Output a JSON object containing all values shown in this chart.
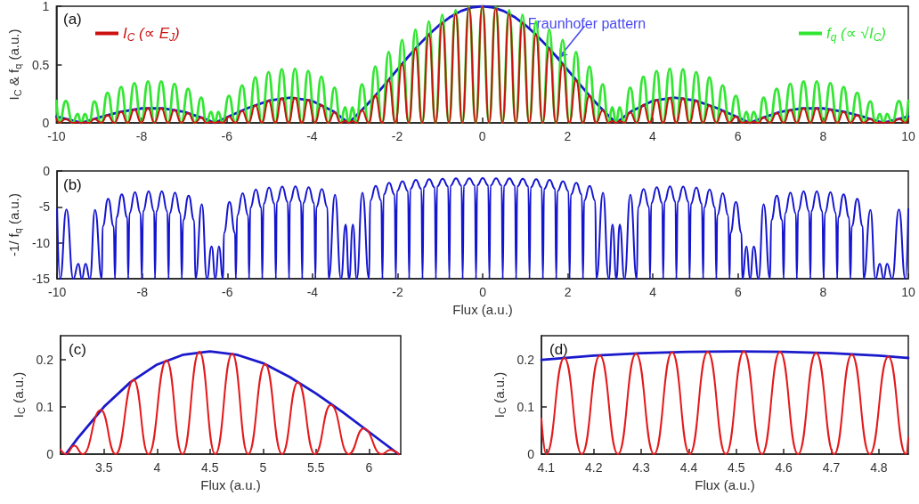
{
  "chart_data": [
    {
      "type": "line",
      "title": "(a)",
      "ylabel": "I$_{C}$ & f$_{q}$ (a.u.)",
      "xlim": [
        -10,
        10
      ],
      "xticks": [
        -10,
        -8,
        -6,
        -4,
        -2,
        0,
        2,
        4,
        6,
        8,
        10
      ],
      "ylim": [
        0,
        1
      ],
      "yticks": [
        0,
        0.5,
        1
      ],
      "legend": "top",
      "marker": "none",
      "x": [
        -10,
        -9.93,
        -9.78,
        -9.62,
        -9.5,
        -9.42,
        -9.33,
        -9.23,
        -9.11,
        -8.95,
        -8.8,
        -8.64,
        -8.48,
        -8.33,
        -8.17,
        -8.01,
        -7.85,
        -7.7,
        -7.54,
        -7.38,
        -7.23,
        -7.07,
        -6.91,
        -6.75,
        -6.6,
        -6.48,
        -6.37,
        -6.28,
        -6.2,
        -6.1,
        -5.95,
        -5.8,
        -5.64,
        -5.49,
        -5.33,
        -5.18,
        -5.02,
        -4.86,
        -4.71,
        -4.55,
        -4.4,
        -4.24,
        -4.09,
        -3.93,
        -3.78,
        -3.62,
        -3.47,
        -3.33,
        -3.22,
        -3.14,
        -3.05,
        -2.96,
        -2.827,
        -2.67,
        -2.513,
        -2.356,
        -2.199,
        -2.042,
        -1.885,
        -1.728,
        -1.571,
        -1.414,
        -1.257,
        -1.1,
        -0.942,
        -0.785,
        -0.628,
        -0.471,
        -0.314,
        -0.157,
        0,
        0.157,
        0.314,
        0.471,
        0.628,
        0.785,
        0.942,
        1.1,
        1.257,
        1.414,
        1.571,
        1.728,
        1.885,
        2.042,
        2.199,
        2.356,
        2.513,
        2.67,
        2.827,
        2.96,
        3.05,
        3.14,
        3.22,
        3.33,
        3.47,
        3.62,
        3.78,
        3.93,
        4.09,
        4.24,
        4.4,
        4.55,
        4.71,
        4.86,
        5.02,
        5.18,
        5.33,
        5.49,
        5.64,
        5.8,
        5.95,
        6.1,
        6.2,
        6.28,
        6.37,
        6.48,
        6.6,
        6.75,
        6.91,
        7.07,
        7.23,
        7.38,
        7.54,
        7.7,
        7.85,
        8.01,
        8.17,
        8.33,
        8.48,
        8.64,
        8.8,
        8.95,
        9.11,
        9.23,
        9.33,
        9.42,
        9.5,
        9.62,
        9.78,
        9.93,
        10
      ],
      "series": [
        {
          "name": "I$_{C}$ (∝ E$_{J}$)",
          "color": "#cc1111",
          "values": [
            0.036,
            0,
            0.035,
            0,
            0.006,
            0,
            0.006,
            0,
            0.034,
            0,
            0.067,
            0,
            0.095,
            0,
            0.116,
            0,
            0.127,
            0,
            0.126,
            0,
            0.112,
            0,
            0.085,
            0,
            0.047,
            0,
            0.009,
            0,
            0.009,
            0,
            0.054,
            0,
            0.104,
            0,
            0.152,
            0,
            0.19,
            0,
            0.212,
            0,
            0.216,
            0,
            0.198,
            0,
            0.157,
            0,
            0.091,
            0,
            0.018,
            0,
            0.018,
            0,
            0.109,
            0,
            0.234,
            0,
            0.368,
            0,
            0.505,
            0,
            0.637,
            0,
            0.757,
            0,
            0.859,
            0,
            0.936,
            0,
            0.984,
            0,
            1,
            0,
            0.984,
            0,
            0.936,
            0,
            0.859,
            0,
            0.757,
            0,
            0.637,
            0,
            0.505,
            0,
            0.368,
            0,
            0.234,
            0,
            0.109,
            0,
            0.018,
            0,
            0.018,
            0,
            0.091,
            0,
            0.157,
            0,
            0.198,
            0,
            0.216,
            0,
            0.212,
            0,
            0.19,
            0,
            0.152,
            0,
            0.104,
            0,
            0.054,
            0,
            0.009,
            0,
            0.009,
            0,
            0.047,
            0,
            0.085,
            0,
            0.112,
            0,
            0.126,
            0,
            0.127,
            0,
            0.116,
            0,
            0.095,
            0,
            0.067,
            0,
            0.034,
            0,
            0.006,
            0,
            0.006,
            0,
            0.035,
            0,
            0.036
          ]
        },
        {
          "name": "f$_{q}$ (∝ √I$_{C}$)",
          "color": "#33e633",
          "values": [
            0.19,
            0,
            0.187,
            0,
            0.077,
            0,
            0.077,
            0,
            0.184,
            0,
            0.259,
            0,
            0.308,
            0,
            0.341,
            0,
            0.356,
            0,
            0.355,
            0,
            0.335,
            0,
            0.292,
            0,
            0.217,
            0,
            0.095,
            0,
            0.095,
            0,
            0.232,
            0,
            0.322,
            0,
            0.39,
            0,
            0.436,
            0,
            0.46,
            0,
            0.465,
            0,
            0.445,
            0,
            0.396,
            0,
            0.302,
            0,
            0.134,
            0,
            0.134,
            0,
            0.33,
            0,
            0.484,
            0,
            0.607,
            0,
            0.711,
            0,
            0.798,
            0,
            0.87,
            0,
            0.927,
            0,
            0.967,
            0,
            0.992,
            0,
            1,
            0,
            0.992,
            0,
            0.967,
            0,
            0.927,
            0,
            0.87,
            0,
            0.798,
            0,
            0.711,
            0,
            0.607,
            0,
            0.484,
            0,
            0.33,
            0,
            0.134,
            0,
            0.134,
            0,
            0.302,
            0,
            0.396,
            0,
            0.445,
            0,
            0.465,
            0,
            0.46,
            0,
            0.436,
            0,
            0.39,
            0,
            0.322,
            0,
            0.232,
            0,
            0.095,
            0,
            0.095,
            0,
            0.217,
            0,
            0.292,
            0,
            0.335,
            0,
            0.355,
            0,
            0.356,
            0,
            0.341,
            0,
            0.308,
            0,
            0.259,
            0,
            0.184,
            0,
            0.077,
            0,
            0.077,
            0,
            0.187,
            0,
            0.19
          ]
        },
        {
          "color": "#1a1acc",
          "x": [
            -10,
            -9.5,
            -9.42,
            -9,
            -8.5,
            -8,
            -7.5,
            -7,
            -6.5,
            -6.28,
            -6,
            -5.5,
            -5,
            -4.5,
            -4,
            -3.5,
            -3.14,
            -3,
            -2.75,
            -2.5,
            -2.25,
            -2,
            -1.75,
            -1.5,
            -1.25,
            -1,
            -0.75,
            -0.5,
            -0.25,
            0,
            0.25,
            0.5,
            0.75,
            1,
            1.25,
            1.5,
            1.75,
            2,
            2.25,
            2.5,
            2.75,
            3,
            3.14,
            3.5,
            4,
            4.5,
            5,
            5.5,
            6,
            6.28,
            6.5,
            7,
            7.5,
            8,
            8.5,
            9,
            9.42,
            9.5,
            10
          ],
          "values": [
            0.054,
            0.008,
            0,
            0.046,
            0.094,
            0.124,
            0.125,
            0.094,
            0.033,
            0,
            0.047,
            0.128,
            0.192,
            0.217,
            0.189,
            0.1,
            0,
            0.047,
            0.139,
            0.239,
            0.346,
            0.455,
            0.563,
            0.665,
            0.759,
            0.841,
            0.909,
            0.959,
            0.99,
            1,
            0.99,
            0.959,
            0.909,
            0.841,
            0.759,
            0.665,
            0.563,
            0.455,
            0.346,
            0.239,
            0.139,
            0.047,
            0,
            0.1,
            0.189,
            0.217,
            0.192,
            0.128,
            0.047,
            0,
            0.033,
            0.094,
            0.125,
            0.124,
            0.094,
            0.046,
            0,
            0.008,
            0.054
          ]
        }
      ],
      "annotations": [
        {
          "text": "Fraunhofer pattern",
          "x": 1.8,
          "y": 0.56
        }
      ]
    },
    {
      "type": "line",
      "title": "(b)",
      "xlabel": "Flux (a.u.)",
      "ylabel": "-1/ f$_{q}$ (a.u.)",
      "xlim": [
        -10,
        10
      ],
      "xticks": [
        -10,
        -8,
        -6,
        -4,
        -2,
        0,
        2,
        4,
        6,
        8,
        10
      ],
      "ylim": [
        -15,
        0
      ],
      "yticks": [
        -15,
        -10,
        -5,
        0
      ],
      "marker": "none",
      "series": [
        {
          "color": "#1515d0",
          "x": [
            -10,
            -9.93,
            -9.78,
            -9.62,
            -9.5,
            -9.42,
            -9.33,
            -9.23,
            -9.11,
            -8.95,
            -8.93,
            -8.8,
            -8.67,
            -8.64,
            -8.61,
            -8.48,
            -8.35,
            -8.33,
            -8.3,
            -8.17,
            -8.04,
            -8.01,
            -7.98,
            -7.85,
            -7.72,
            -7.7,
            -7.67,
            -7.54,
            -7.41,
            -7.38,
            -7.36,
            -7.23,
            -7.1,
            -7.07,
            -7.04,
            -6.91,
            -6.78,
            -6.75,
            -6.6,
            -6.48,
            -6.37,
            -6.28,
            -6.2,
            -6.1,
            -6.08,
            -5.95,
            -5.82,
            -5.8,
            -5.77,
            -5.64,
            -5.51,
            -5.49,
            -5.46,
            -5.33,
            -5.2,
            -5.18,
            -5.15,
            -5.02,
            -4.89,
            -4.86,
            -4.84,
            -4.71,
            -4.58,
            -4.55,
            -4.53,
            -4.4,
            -4.27,
            -4.24,
            -4.22,
            -4.09,
            -3.96,
            -3.93,
            -3.91,
            -3.78,
            -3.65,
            -3.62,
            -3.47,
            -3.33,
            -3.22,
            -3.14,
            -3.05,
            -2.96,
            -2.827,
            -2.67,
            -2.643,
            -2.513,
            -2.383,
            -2.356,
            -2.329,
            -2.199,
            -2.069,
            -2.042,
            -2.015,
            -1.885,
            -1.755,
            -1.728,
            -1.701,
            -1.571,
            -1.441,
            -1.414,
            -1.387,
            -1.257,
            -1.127,
            -1.1,
            -1.072,
            -0.942,
            -0.812,
            -0.785,
            -0.758,
            -0.628,
            -0.498,
            -0.471,
            -0.444,
            -0.314,
            -0.184,
            -0.157,
            -0.13,
            0,
            0.13,
            0.157,
            0.184,
            0.314,
            0.444,
            0.471,
            0.498,
            0.628,
            0.758,
            0.785,
            0.812,
            0.942,
            1.072,
            1.1,
            1.127,
            1.257,
            1.387,
            1.414,
            1.441,
            1.571,
            1.701,
            1.728,
            1.755,
            1.885,
            2.015,
            2.042,
            2.069,
            2.199,
            2.329,
            2.356,
            2.383,
            2.513,
            2.643,
            2.67,
            2.827,
            2.96,
            3.05,
            3.14,
            3.22,
            3.33,
            3.47,
            3.62,
            3.65,
            3.78,
            3.91,
            3.93,
            3.96,
            4.09,
            4.22,
            4.24,
            4.27,
            4.4,
            4.53,
            4.55,
            4.58,
            4.71,
            4.84,
            4.86,
            4.89,
            5.02,
            5.15,
            5.18,
            5.2,
            5.33,
            5.46,
            5.49,
            5.51,
            5.64,
            5.77,
            5.8,
            5.82,
            5.95,
            6.08,
            6.1,
            6.2,
            6.28,
            6.37,
            6.48,
            6.6,
            6.75,
            6.78,
            6.91,
            7.04,
            7.07,
            7.1,
            7.23,
            7.36,
            7.38,
            7.41,
            7.54,
            7.67,
            7.7,
            7.72,
            7.85,
            7.98,
            8.01,
            8.04,
            8.17,
            8.3,
            8.33,
            8.35,
            8.48,
            8.61,
            8.64,
            8.67,
            8.8,
            8.93,
            8.95,
            9.11,
            9.23,
            9.33,
            9.42,
            9.5,
            9.62,
            9.78,
            9.93,
            10
          ],
          "values": [
            -5.3,
            -15,
            -5.35,
            -15,
            -12.9,
            -15,
            -12.9,
            -15,
            -5.42,
            -15,
            -7.72,
            -3.86,
            -7.72,
            -15,
            -6.48,
            -3.24,
            -6.48,
            -15,
            -5.88,
            -2.94,
            -5.88,
            -15,
            -5.62,
            -2.81,
            -5.62,
            -15,
            -5.64,
            -2.82,
            -5.64,
            -15,
            -5.98,
            -2.99,
            -5.98,
            -15,
            -6.86,
            -3.43,
            -6.86,
            -15,
            -4.61,
            -15,
            -10.5,
            -15,
            -10.5,
            -15,
            -8.6,
            -4.3,
            -8.6,
            -15,
            -6.2,
            -3.1,
            -6.2,
            -15,
            -5.12,
            -2.56,
            -5.12,
            -15,
            -4.58,
            -2.29,
            -4.58,
            -15,
            -4.34,
            -2.17,
            -4.34,
            -15,
            -4.3,
            -2.15,
            -4.3,
            -15,
            -4.5,
            -2.25,
            -4.5,
            -15,
            -5.04,
            -2.52,
            -5.04,
            -15,
            -3.31,
            -15,
            -7.45,
            -15,
            -7.45,
            -15,
            -3.03,
            -15,
            -4.14,
            -2.07,
            -4.14,
            -15,
            -3.3,
            -1.65,
            -3.3,
            -15,
            -2.82,
            -1.41,
            -2.82,
            -15,
            -2.5,
            -1.25,
            -2.5,
            -15,
            -2.3,
            -1.15,
            -2.3,
            -15,
            -2.16,
            -1.08,
            -2.16,
            -15,
            -2.06,
            -1.03,
            -2.06,
            -15,
            -2.02,
            -1.01,
            -2.02,
            -15,
            -2,
            -1,
            -2,
            -15,
            -2.02,
            -1.01,
            -2.02,
            -15,
            -2.06,
            -1.03,
            -2.06,
            -15,
            -2.16,
            -1.08,
            -2.16,
            -15,
            -2.3,
            -1.15,
            -2.3,
            -15,
            -2.5,
            -1.25,
            -2.5,
            -15,
            -2.82,
            -1.41,
            -2.82,
            -15,
            -3.3,
            -1.65,
            -3.3,
            -15,
            -4.14,
            -2.07,
            -4.14,
            -15,
            -3.03,
            -15,
            -7.45,
            -15,
            -7.45,
            -15,
            -3.31,
            -15,
            -5.04,
            -2.52,
            -5.04,
            -15,
            -4.5,
            -2.25,
            -4.5,
            -15,
            -4.3,
            -2.15,
            -4.3,
            -15,
            -4.34,
            -2.17,
            -4.34,
            -15,
            -4.58,
            -2.29,
            -4.58,
            -15,
            -5.12,
            -2.56,
            -5.12,
            -15,
            -6.2,
            -3.1,
            -6.2,
            -15,
            -8.6,
            -4.3,
            -8.6,
            -15,
            -10.5,
            -15,
            -10.5,
            -15,
            -4.61,
            -15,
            -6.86,
            -3.43,
            -6.86,
            -15,
            -5.98,
            -2.99,
            -5.98,
            -15,
            -5.64,
            -2.82,
            -5.64,
            -15,
            -5.62,
            -2.81,
            -5.62,
            -15,
            -5.88,
            -2.94,
            -5.88,
            -15,
            -6.48,
            -3.24,
            -6.48,
            -15,
            -7.72,
            -3.86,
            -7.72,
            -15,
            -5.42,
            -15,
            -12.9,
            -15,
            -12.9,
            -15,
            -5.35,
            -15,
            -5.3
          ]
        }
      ]
    },
    {
      "type": "line",
      "title": "(c)",
      "xlabel": "Flux (a.u.)",
      "ylabel": "I$_{C}$ (a.u.)",
      "xlim": [
        3.09,
        6.3
      ],
      "xticks": [
        3.5,
        4,
        4.5,
        5,
        5.5,
        6
      ],
      "ylim": [
        0,
        0.25
      ],
      "yticks": [
        0,
        0.1,
        0.2
      ],
      "marker": "none",
      "series": [
        {
          "color": "#e31a1c",
          "x": [
            3.09,
            3.14,
            3.22,
            3.3,
            3.47,
            3.61,
            3.78,
            3.92,
            4.09,
            4.24,
            4.4,
            4.55,
            4.71,
            4.86,
            5.02,
            5.18,
            5.33,
            5.49,
            5.64,
            5.81,
            5.95,
            6.12,
            6.2,
            6.28
          ],
          "values": [
            0.01,
            0,
            0.018,
            0,
            0.093,
            0,
            0.157,
            0,
            0.198,
            0,
            0.216,
            0,
            0.212,
            0,
            0.19,
            0,
            0.152,
            0,
            0.104,
            0,
            0.054,
            0,
            0.009,
            0
          ]
        },
        {
          "color": "#1a1acc",
          "x": [
            3.14,
            3.25,
            3.5,
            3.75,
            4,
            4.25,
            4.5,
            4.75,
            5,
            5.25,
            5.5,
            5.75,
            6,
            6.28
          ],
          "values": [
            0,
            0.033,
            0.1,
            0.152,
            0.189,
            0.21,
            0.217,
            0.21,
            0.192,
            0.163,
            0.128,
            0.089,
            0.047,
            0
          ]
        }
      ]
    },
    {
      "type": "line",
      "title": "(d)",
      "xlabel": "Flux (a.u.)",
      "ylabel": "I$_{C}$ (a.u.)",
      "xlim": [
        4.09,
        4.862
      ],
      "xticks": [
        4.1,
        4.2,
        4.3,
        4.4,
        4.5,
        4.6,
        4.7,
        4.8
      ],
      "ylim": [
        0,
        0.25
      ],
      "yticks": [
        0,
        0.1,
        0.2
      ],
      "marker": "none",
      "series": [
        {
          "color": "#e31a1c",
          "x": [
            4.09,
            4.1,
            4.138,
            4.175,
            4.213,
            4.251,
            4.289,
            4.327,
            4.365,
            4.402,
            4.44,
            4.478,
            4.516,
            4.554,
            4.592,
            4.63,
            4.668,
            4.706,
            4.743,
            4.781,
            4.82,
            4.857,
            4.862
          ],
          "values": [
            0.075,
            0,
            0.203,
            0,
            0.208,
            0,
            0.212,
            0,
            0.215,
            0,
            0.216,
            0,
            0.217,
            0,
            0.216,
            0,
            0.214,
            0,
            0.21,
            0,
            0.206,
            0,
            0.035
          ]
        },
        {
          "color": "#1a1acc",
          "x": [
            4.09,
            4.2,
            4.3,
            4.4,
            4.5,
            4.6,
            4.7,
            4.8,
            4.862
          ],
          "values": [
            0.199,
            0.208,
            0.213,
            0.216,
            0.217,
            0.216,
            0.213,
            0.208,
            0.203
          ]
        }
      ]
    }
  ]
}
